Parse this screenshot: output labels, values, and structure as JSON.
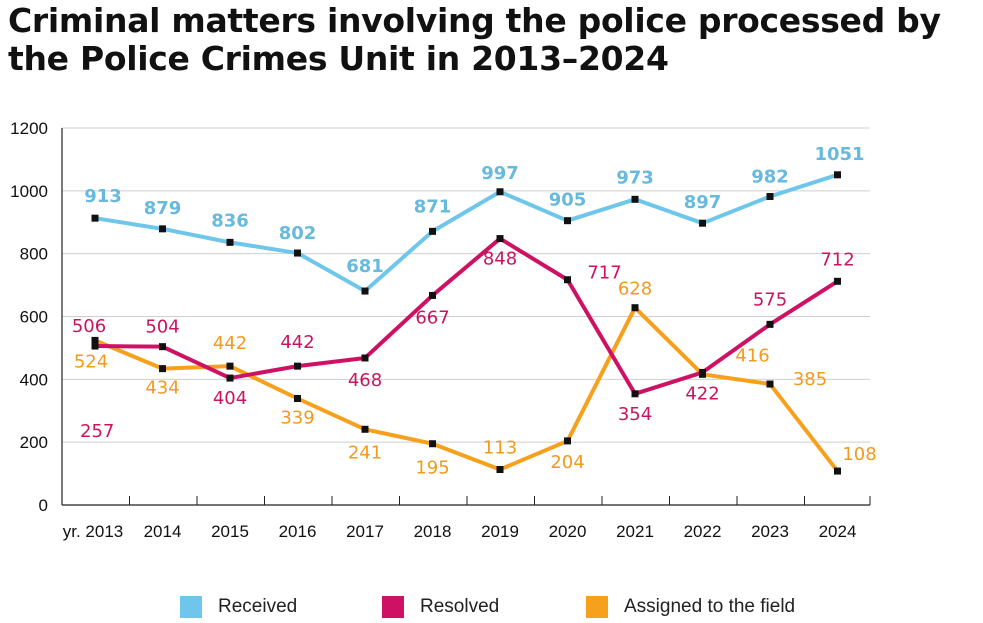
{
  "colors": {
    "received": "#6ec6ea",
    "resolved": "#cf1164",
    "assigned": "#f7a01b",
    "received_label": "#67b9de",
    "resolved_label": "#c8155f",
    "assigned_label": "#f39a1c",
    "grid": "#cfcfcf",
    "axis": "#222222",
    "marker": "#111111"
  },
  "chart_data": {
    "type": "line",
    "title": "Criminal matters involving the police processed by the Police Crimes Unit in 2013–2024",
    "categories": [
      "yr. 2013",
      "2014",
      "2015",
      "2016",
      "2017",
      "2018",
      "2019",
      "2020",
      "2021",
      "2022",
      "2023",
      "2024"
    ],
    "yticks": [
      "0",
      "200",
      "400",
      "600",
      "800",
      "1000",
      "1200"
    ],
    "ylim": [
      0,
      1200
    ],
    "xlabel": "",
    "ylabel": "",
    "grid": true,
    "legend_position": "bottom",
    "series": [
      {
        "key": "received",
        "name": "Received",
        "values": [
          913,
          879,
          836,
          802,
          681,
          871,
          997,
          905,
          973,
          897,
          982,
          1051
        ],
        "labels": [
          "913",
          "879",
          "836",
          "802",
          "681",
          "871",
          "997",
          "905",
          "973",
          "897",
          "982",
          "1051"
        ]
      },
      {
        "key": "resolved",
        "name": "Resolved",
        "values": [
          506,
          504,
          404,
          442,
          468,
          667,
          848,
          717,
          354,
          422,
          575,
          712
        ],
        "labels": [
          "506",
          "504",
          "404",
          "442",
          "468",
          "667",
          "848",
          "717",
          "354",
          "422",
          "575",
          "712"
        ]
      },
      {
        "key": "assigned",
        "name": "Assigned to the field",
        "values": [
          524,
          434,
          442,
          339,
          241,
          195,
          113,
          204,
          628,
          416,
          385,
          108
        ],
        "labels": [
          "524",
          "434",
          "442",
          "339",
          "241",
          "195",
          "113",
          "204",
          "628",
          "416",
          "385",
          "108"
        ]
      }
    ],
    "annotations": [
      {
        "series": "resolved",
        "text": "257"
      }
    ]
  }
}
